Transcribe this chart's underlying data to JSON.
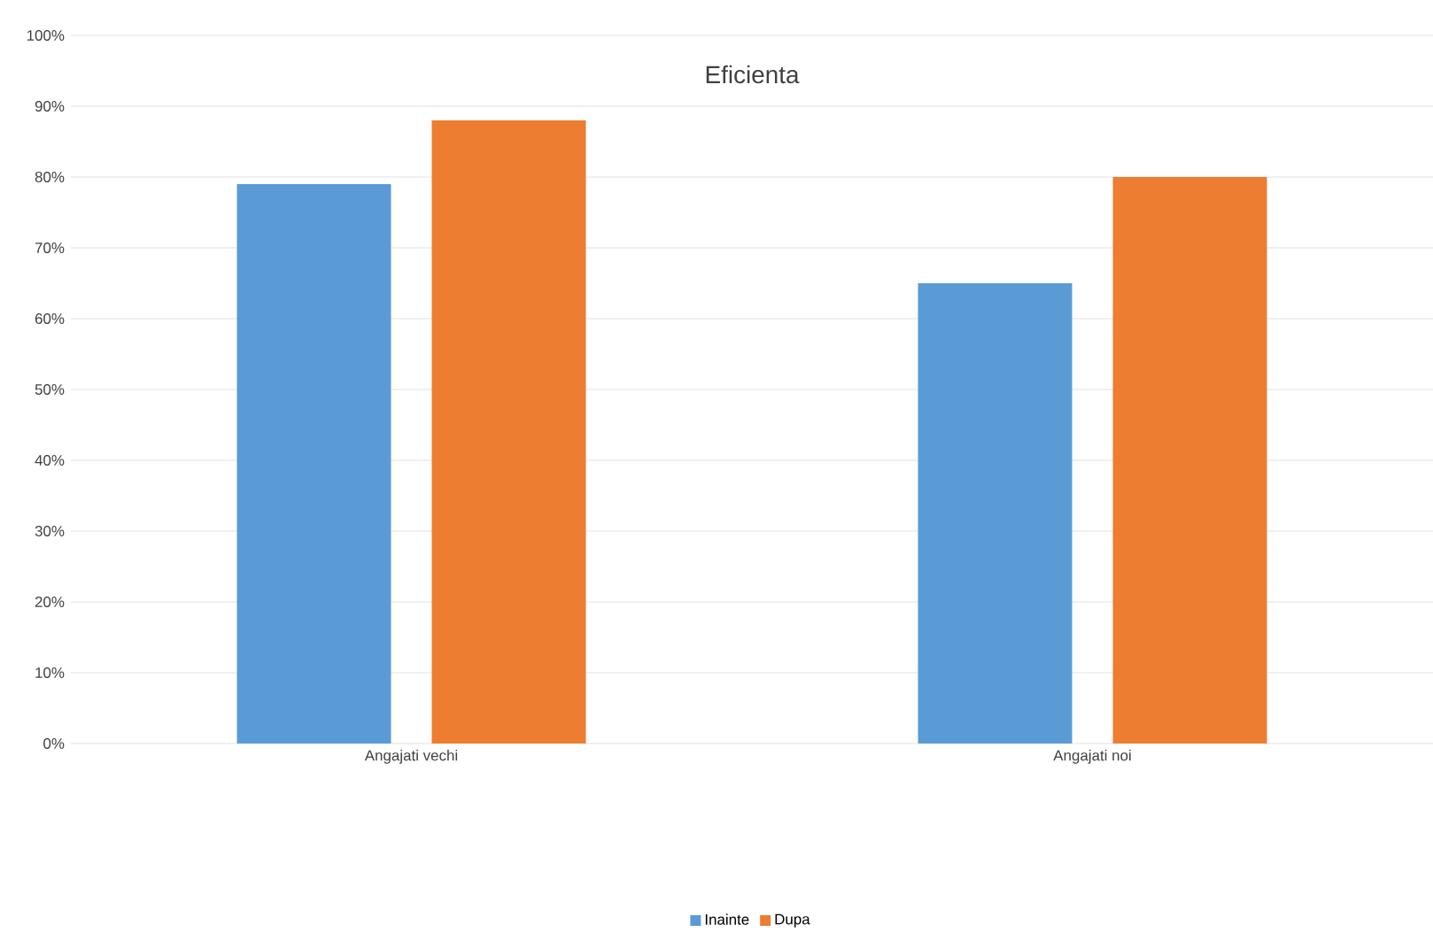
{
  "chart_data": {
    "type": "bar",
    "title": "Eficienta",
    "categories": [
      "Angajati vechi",
      "Angajati noi"
    ],
    "series": [
      {
        "name": "Inainte",
        "color": "#5b9bd5",
        "values": [
          79,
          65
        ]
      },
      {
        "name": "Dupa",
        "color": "#ed7d31",
        "values": [
          88,
          80
        ]
      }
    ],
    "ylim": [
      0,
      100
    ],
    "yticks": [
      {
        "value": 0,
        "label": "0%"
      },
      {
        "value": 10,
        "label": "10%"
      },
      {
        "value": 20,
        "label": "20%"
      },
      {
        "value": 30,
        "label": "30%"
      },
      {
        "value": 40,
        "label": "40%"
      },
      {
        "value": 50,
        "label": "50%"
      },
      {
        "value": 60,
        "label": "60%"
      },
      {
        "value": 70,
        "label": "70%"
      },
      {
        "value": 80,
        "label": "80%"
      },
      {
        "value": 90,
        "label": "90%"
      },
      {
        "value": 100,
        "label": "100%"
      }
    ],
    "grid": "y",
    "legend": "bottom"
  }
}
